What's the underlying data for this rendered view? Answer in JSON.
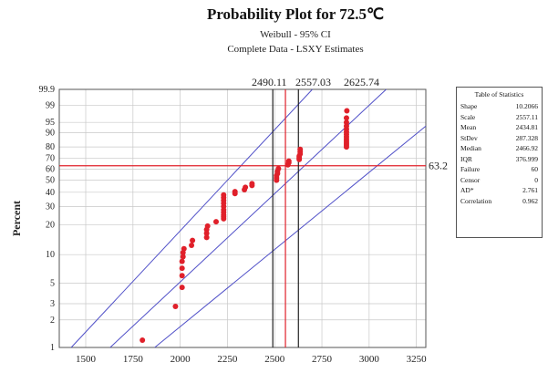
{
  "chart_data": {
    "type": "scatter",
    "title": "Probability Plot for 72.5℃",
    "subtitle_1": "Weibull - 95% CI",
    "subtitle_2": "Complete Data - LSXY Estimates",
    "ylabel": "Percent",
    "xlabel": "",
    "x_ticks": [
      1500,
      1750,
      2000,
      2250,
      2500,
      2750,
      3000,
      3250
    ],
    "xlim": [
      1360,
      3300
    ],
    "y_ticks": [
      1,
      2,
      3,
      5,
      10,
      20,
      30,
      40,
      50,
      60,
      70,
      80,
      90,
      95,
      99,
      99.9
    ],
    "y_tick_labels": [
      "1",
      "2",
      "3",
      "5",
      "10",
      "20",
      "30",
      "40",
      "50",
      "60",
      "70",
      "80",
      "90",
      "95",
      "99",
      "99.9"
    ],
    "ylim": [
      1,
      99.9
    ],
    "y_scale": "weibull-probability",
    "grid": true,
    "ref_line_percent": 63.2,
    "ref_line_label": "63.2",
    "vertical_refs": [
      {
        "x": 2490.11,
        "label": "2490.11",
        "color": "#222222"
      },
      {
        "x": 2557.03,
        "label": "2557.03",
        "color": "#e0202a"
      },
      {
        "x": 2625.74,
        "label": "2625.74",
        "color": "#222222"
      }
    ],
    "fit": {
      "shape": 10.2066,
      "scale": 2557.11
    },
    "ci_band_factor": 1.38,
    "series": [
      {
        "points": [
          [
            1800,
            1.2
          ],
          [
            1975,
            2.8
          ],
          [
            2010,
            4.5
          ],
          [
            2010,
            6.0
          ],
          [
            2010,
            7.2
          ],
          [
            2010,
            8.5
          ],
          [
            2015,
            9.5
          ],
          [
            2015,
            10.5
          ],
          [
            2020,
            11.5
          ],
          [
            2060,
            12.5
          ],
          [
            2065,
            14.0
          ],
          [
            2140,
            15.0
          ],
          [
            2140,
            16.5
          ],
          [
            2140,
            18.0
          ],
          [
            2145,
            19.5
          ],
          [
            2190,
            21.5
          ],
          [
            2230,
            23.0
          ],
          [
            2230,
            24.0
          ],
          [
            2230,
            25.0
          ],
          [
            2230,
            26.5
          ],
          [
            2230,
            28.0
          ],
          [
            2230,
            30.0
          ],
          [
            2230,
            32.0
          ],
          [
            2230,
            34.0
          ],
          [
            2230,
            36.0
          ],
          [
            2230,
            38.0
          ],
          [
            2290,
            39.0
          ],
          [
            2290,
            40.5
          ],
          [
            2340,
            42.0
          ],
          [
            2345,
            44.0
          ],
          [
            2380,
            45.5
          ],
          [
            2380,
            47.0
          ],
          [
            2510,
            50.0
          ],
          [
            2510,
            52.0
          ],
          [
            2510,
            54.0
          ],
          [
            2515,
            56.0
          ],
          [
            2515,
            58.0
          ],
          [
            2520,
            60.5
          ],
          [
            2570,
            64.0
          ],
          [
            2575,
            66.0
          ],
          [
            2575,
            67.5
          ],
          [
            2630,
            69.0
          ],
          [
            2630,
            70.5
          ],
          [
            2630,
            72.0
          ],
          [
            2635,
            74.0
          ],
          [
            2635,
            76.0
          ],
          [
            2635,
            78.0
          ],
          [
            2880,
            80.0
          ],
          [
            2880,
            81.5
          ],
          [
            2880,
            83.0
          ],
          [
            2880,
            84.5
          ],
          [
            2880,
            86.0
          ],
          [
            2880,
            87.5
          ],
          [
            2880,
            89.0
          ],
          [
            2880,
            90.5
          ],
          [
            2880,
            92.0
          ],
          [
            2880,
            93.5
          ],
          [
            2880,
            95.0
          ],
          [
            2880,
            96.5
          ],
          [
            2882,
            98.2
          ]
        ]
      }
    ],
    "colors": {
      "points": "#e0202a",
      "fit": "#5050c8",
      "ref": "#e0202a",
      "grid": "#c8c8c8"
    }
  },
  "stats_table": {
    "title": "Table of Statistics",
    "rows": [
      {
        "label": "Shape",
        "value": "10.2066"
      },
      {
        "label": "Scale",
        "value": "2557.11"
      },
      {
        "label": "Mean",
        "value": "2434.81"
      },
      {
        "label": "StDev",
        "value": "287.328"
      },
      {
        "label": "Median",
        "value": "2466.92"
      },
      {
        "label": "IQR",
        "value": "376.999"
      },
      {
        "label": "Failure",
        "value": "60"
      },
      {
        "label": "Censor",
        "value": "0"
      },
      {
        "label": "AD*",
        "value": "2.761"
      },
      {
        "label": "Correlation",
        "value": "0.962"
      }
    ]
  }
}
